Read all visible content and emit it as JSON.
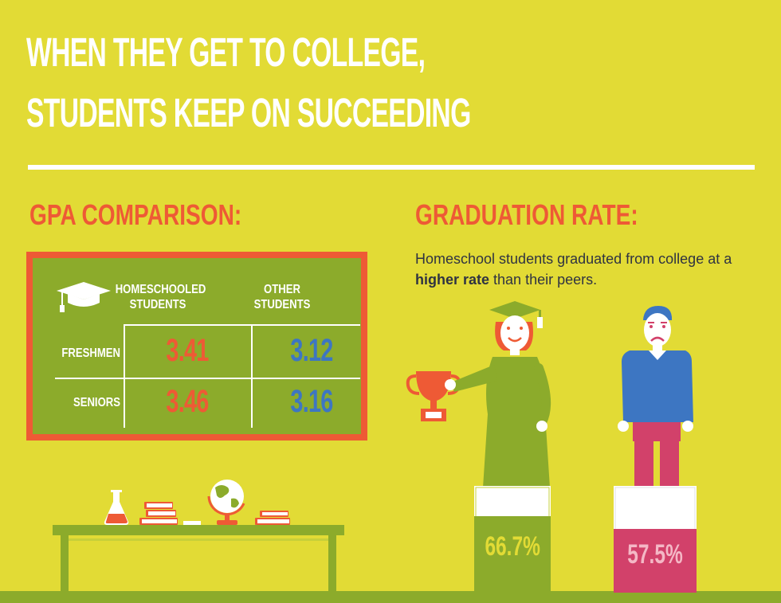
{
  "title": {
    "line1": "WHEN THEY GET TO COLLEGE,",
    "line2": "STUDENTS KEEP ON SUCCEEDING"
  },
  "gpa": {
    "heading": "GPA COMPARISON:",
    "columns": [
      "HOMESCHOOLED STUDENTS",
      "OTHER STUDENTS"
    ],
    "column_lines": [
      [
        "HOMESCHOOLED",
        "STUDENTS"
      ],
      [
        "OTHER",
        "STUDENTS"
      ]
    ],
    "rows": [
      {
        "label": "FRESHMEN",
        "homeschooled": "3.41",
        "other": "3.12"
      },
      {
        "label": "SENIORS",
        "homeschooled": "3.46",
        "other": "3.16"
      }
    ]
  },
  "graduation": {
    "heading": "GRADUATION RATE:",
    "description_before": "Homeschool students graduated from college at a ",
    "description_bold": "higher rate",
    "description_after": " than their peers.",
    "homeschooled_percent": "66.7%",
    "other_percent": "57.5%"
  },
  "colors": {
    "background": "#E2DB35",
    "accent_orange": "#EE5A35",
    "board_green": "#8CAB2B",
    "blue": "#3D76C2",
    "crimson": "#D2416A",
    "white": "#FFFFFF",
    "text_dark": "#2F3342"
  },
  "icons": [
    "graduation-cap-icon",
    "trophy-icon",
    "flask-icon",
    "books-icon",
    "globe-icon"
  ]
}
